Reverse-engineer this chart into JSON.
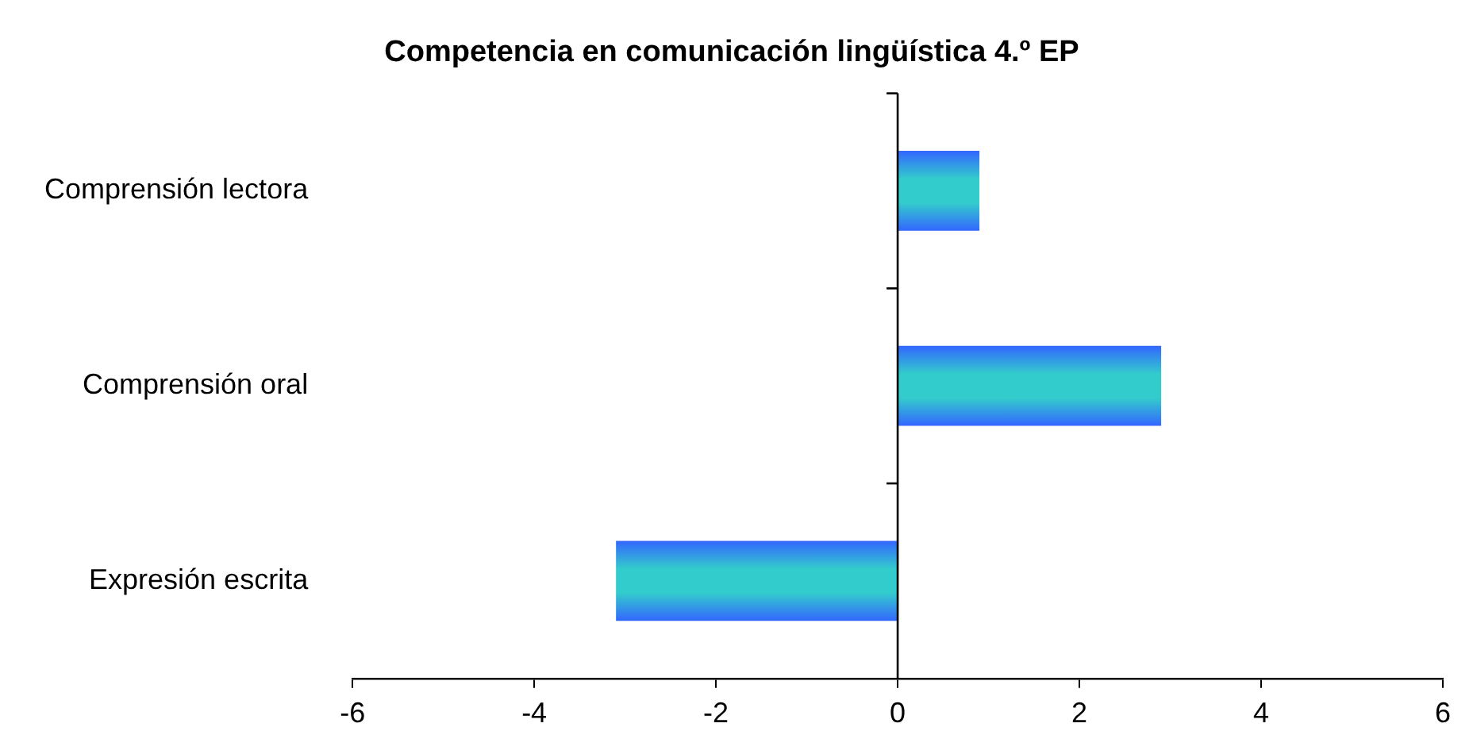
{
  "chart_data": {
    "type": "bar",
    "orientation": "horizontal",
    "title": "Competencia en comunicación lingüística 4.º EP",
    "categories": [
      "Comprensión lectora",
      "Comprensión oral",
      "Expresión escrita"
    ],
    "series": [
      {
        "color": "#33cccc",
        "values": [
          0.9,
          2.9,
          -3.1
        ]
      }
    ],
    "xlim": [
      -6,
      6
    ],
    "xticks": [
      -6,
      -4,
      -2,
      0,
      2,
      4,
      6
    ],
    "legend": false
  }
}
